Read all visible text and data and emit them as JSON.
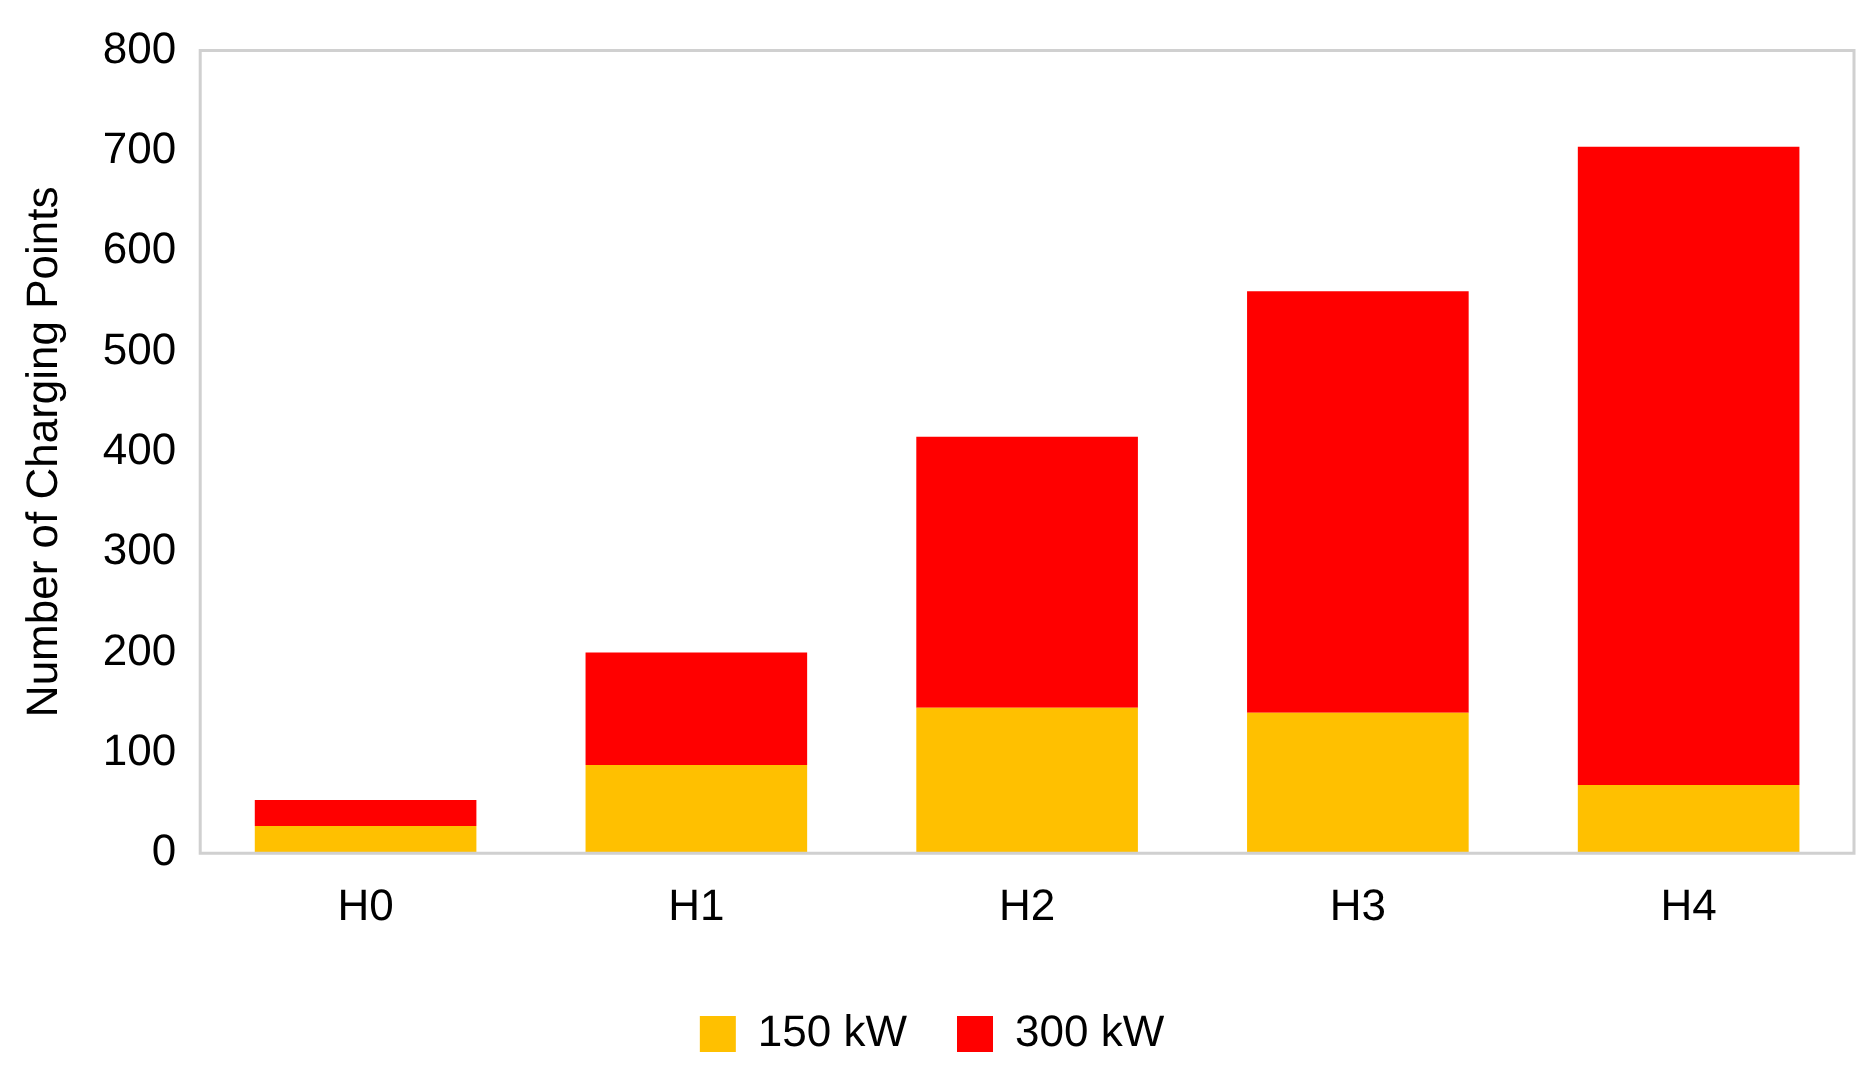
{
  "chart_data": {
    "type": "bar",
    "ylabel": "Number of Charging Points",
    "categories": [
      "H0",
      "H1",
      "H2",
      "H3",
      "H4"
    ],
    "series": [
      {
        "name": "150 kW",
        "color": "#ffc000",
        "values": [
          27,
          88,
          145,
          140,
          68
        ]
      },
      {
        "name": "300 kW",
        "color": "#ff0000",
        "values": [
          26,
          112,
          270,
          420,
          636
        ]
      }
    ],
    "stacked": true,
    "ylim": [
      0,
      800
    ],
    "yticks": [
      0,
      100,
      200,
      300,
      400,
      500,
      600,
      700,
      800
    ],
    "grid": false,
    "legend": "bottom"
  }
}
